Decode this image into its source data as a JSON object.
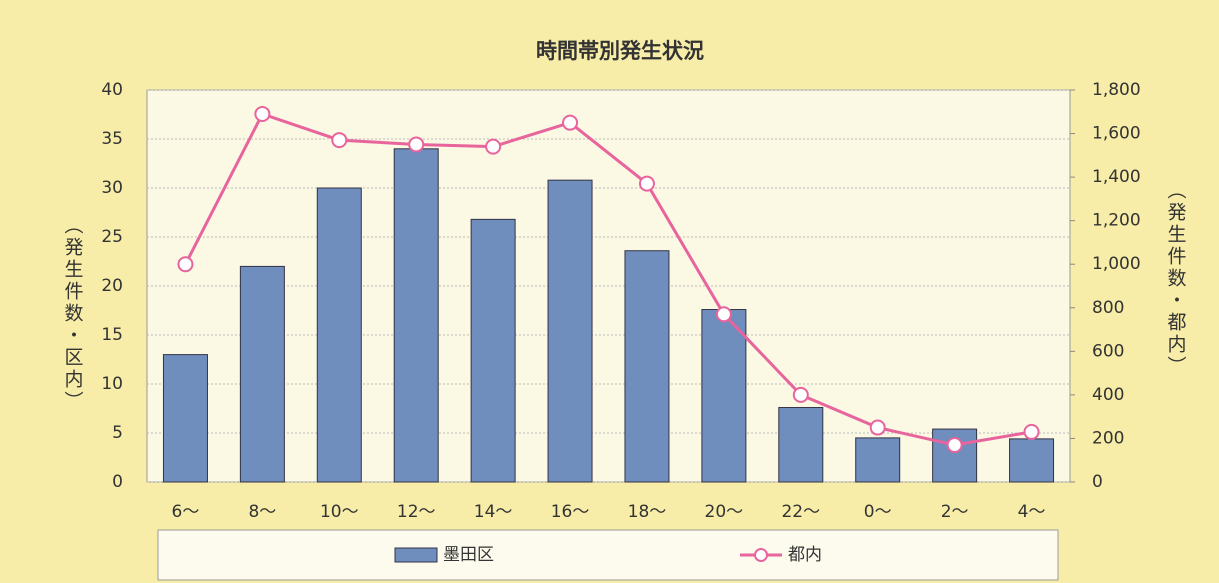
{
  "chart_data": {
    "type": "bar_line",
    "title": "時間帯別発生状況",
    "categories": [
      "6～",
      "8～",
      "10～",
      "12～",
      "14～",
      "16～",
      "18～",
      "20～",
      "22～",
      "0～",
      "2～",
      "4～"
    ],
    "series": [
      {
        "name": "墨田区",
        "type": "bar",
        "color": "#6f8dbd",
        "values": [
          13,
          22,
          30,
          34,
          26.8,
          30.8,
          23.6,
          17.6,
          7.6,
          4.5,
          5.4,
          4.4
        ]
      },
      {
        "name": "都内",
        "type": "line",
        "axis": "y2",
        "color": "#e8649c",
        "values": [
          1000,
          1690,
          1570,
          1550,
          1540,
          1650,
          1370,
          770,
          400,
          250,
          170,
          230
        ]
      }
    ],
    "ylabel": "（発生件数・区内）",
    "y2label": "（発生件数・都内）",
    "ylim": [
      0,
      40
    ],
    "yticks": [
      0,
      5,
      10,
      15,
      20,
      25,
      30,
      35,
      40
    ],
    "y2lim": [
      0,
      1800
    ],
    "y2ticks": [
      0,
      200,
      400,
      600,
      800,
      {
        "value": 1000,
        "label": "1,000"
      },
      {
        "value": 1200,
        "label": "1,200"
      },
      {
        "value": 1400,
        "label": "1,400"
      },
      {
        "value": 1600,
        "label": "1,600"
      },
      {
        "value": 1800,
        "label": "1,800"
      }
    ],
    "grid": true,
    "legend": "bottom"
  }
}
